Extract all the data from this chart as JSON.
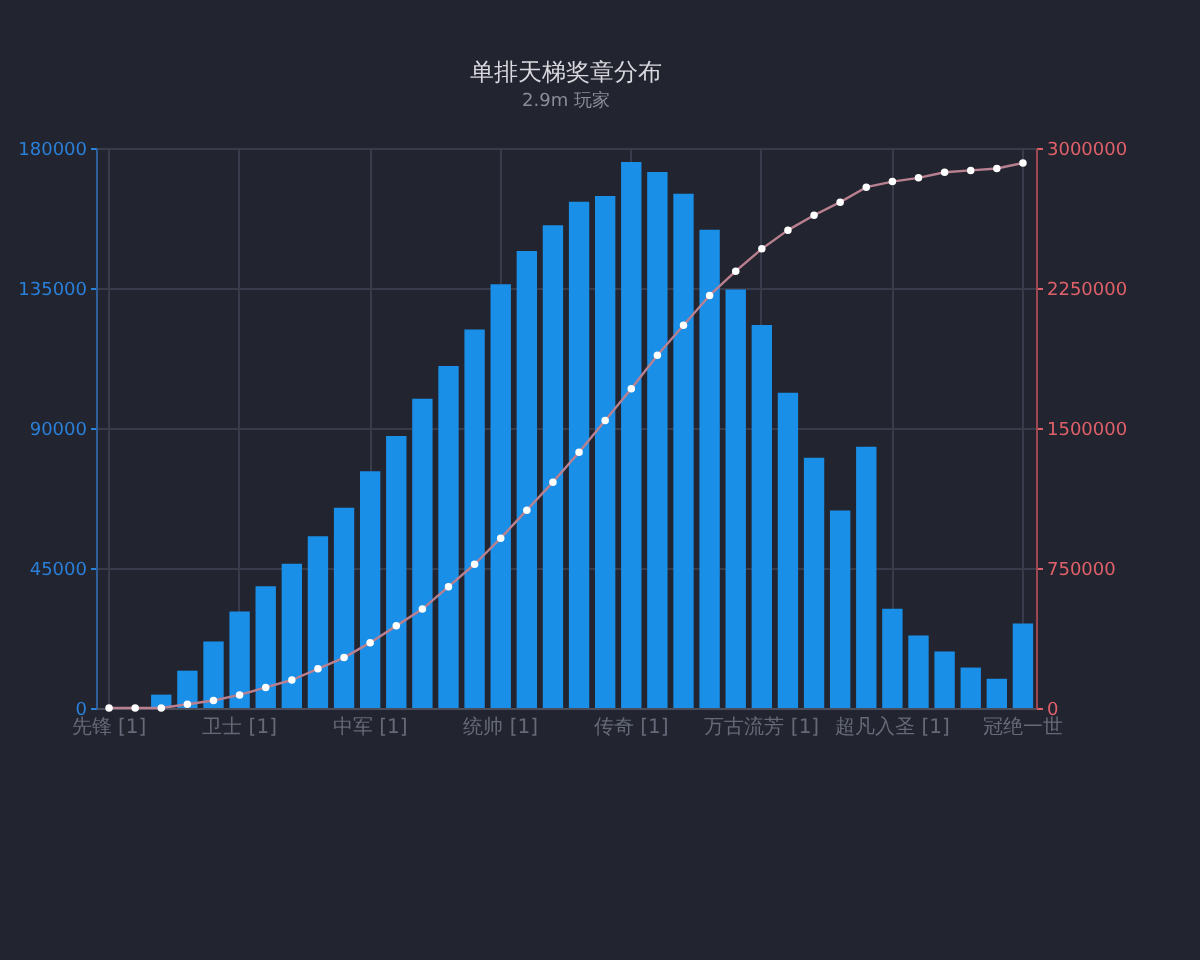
{
  "chart_data": {
    "type": "bar",
    "title": "单排天梯奖章分布",
    "subtitle": "2.9m 玩家",
    "categories": [
      "先锋 [1]",
      null,
      null,
      null,
      null,
      "卫士 [1]",
      null,
      null,
      null,
      null,
      "中军 [1]",
      null,
      null,
      null,
      null,
      "统帅 [1]",
      null,
      null,
      null,
      null,
      "传奇 [1]",
      null,
      null,
      null,
      null,
      "万古流芳 [1]",
      null,
      null,
      null,
      null,
      "超凡入圣 [1]",
      null,
      null,
      null,
      null,
      "冠绝一世"
    ],
    "series": [
      {
        "color": "#1a8fe8",
        "values": [
          null,
          null,
          4300,
          12000,
          21400,
          31000,
          39100,
          46400,
          55200,
          64400,
          76100,
          87400,
          99400,
          109900,
          121700,
          136200,
          146900,
          155200,
          162700,
          164600,
          175500,
          172300,
          165300,
          153700,
          134500,
          123100,
          101300,
          80400,
          63500,
          84000,
          31900,
          23300,
          18200,
          13000,
          9400,
          27200
        ]
      },
      {
        "type": "line",
        "axis": "y2",
        "color": "#b9808f",
        "marker": "circle",
        "values": [
          0,
          0,
          0,
          20000,
          40000,
          70000,
          110000,
          150000,
          210000,
          270000,
          350000,
          440000,
          530000,
          650000,
          770000,
          910000,
          1060000,
          1210000,
          1370000,
          1540000,
          1710000,
          1890000,
          2050000,
          2210000,
          2340000,
          2460000,
          2560000,
          2640000,
          2710000,
          2790000,
          2820000,
          2840000,
          2870000,
          2880000,
          2890000,
          2920000
        ]
      }
    ],
    "ylim": [
      0,
      180000
    ],
    "yticks": [
      0,
      45000,
      90000,
      135000,
      180000
    ],
    "y2lim": [
      0,
      3000000
    ],
    "y2ticks": [
      0,
      750000,
      1500000,
      2250000,
      3000000
    ],
    "grid": true
  }
}
